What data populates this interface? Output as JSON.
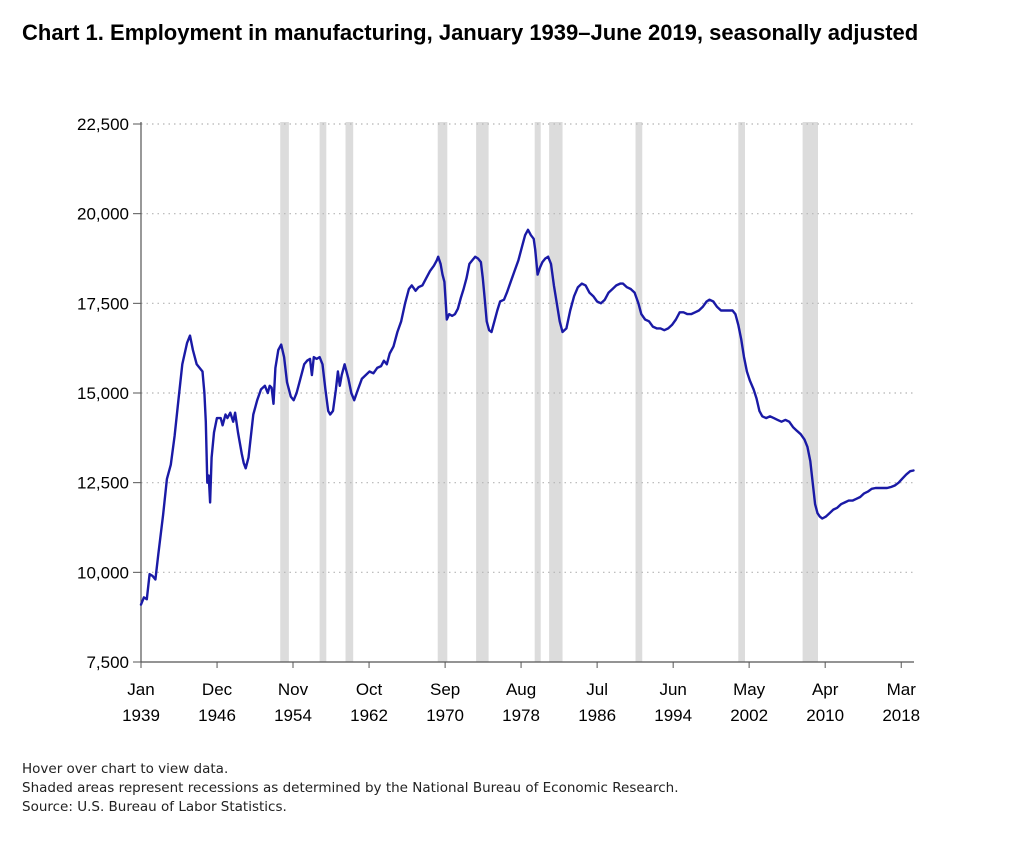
{
  "title": "Chart 1. Employment in manufacturing, January 1939–June 2019, seasonally adjusted",
  "notes": {
    "hover": "Hover over chart to view data.",
    "shading": "Shaded areas represent recessions as determined by the National Bureau of Economic Research.",
    "source": "Source: U.S. Bureau of Labor Statistics."
  },
  "colors": {
    "line": "#1a1aa6",
    "recession": "#dcdcdc",
    "grid": "#b5b5b5",
    "axis": "#555555"
  },
  "chart_data": {
    "type": "line",
    "title": "Chart 1. Employment in manufacturing, January 1939–June 2019, seasonally adjusted",
    "xlabel": "",
    "ylabel": "",
    "xlim": [
      1939.0,
      2019.5
    ],
    "ylim": [
      7500,
      22500
    ],
    "grid": "horizontal dotted",
    "y_ticks": [
      {
        "value": 7500,
        "label": "7,500"
      },
      {
        "value": 10000,
        "label": "10,000"
      },
      {
        "value": 12500,
        "label": "12,500"
      },
      {
        "value": 15000,
        "label": "15,000"
      },
      {
        "value": 17500,
        "label": "17,500"
      },
      {
        "value": 20000,
        "label": "20,000"
      },
      {
        "value": 22500,
        "label": "22,500"
      }
    ],
    "x_ticks": [
      {
        "value": 1939.0,
        "month": "Jan",
        "year": "1939"
      },
      {
        "value": 1946.92,
        "month": "Dec",
        "year": "1946"
      },
      {
        "value": 1954.83,
        "month": "Nov",
        "year": "1954"
      },
      {
        "value": 1962.75,
        "month": "Oct",
        "year": "1962"
      },
      {
        "value": 1970.67,
        "month": "Sep",
        "year": "1970"
      },
      {
        "value": 1978.58,
        "month": "Aug",
        "year": "1978"
      },
      {
        "value": 1986.5,
        "month": "Jul",
        "year": "1986"
      },
      {
        "value": 1994.42,
        "month": "Jun",
        "year": "1994"
      },
      {
        "value": 2002.33,
        "month": "May",
        "year": "2002"
      },
      {
        "value": 2010.25,
        "month": "Apr",
        "year": "2010"
      },
      {
        "value": 2018.17,
        "month": "Mar",
        "year": "2018"
      }
    ],
    "recessions": [
      [
        1953.5,
        1954.4
      ],
      [
        1957.6,
        1958.3
      ],
      [
        1960.3,
        1961.1
      ],
      [
        1969.9,
        1970.9
      ],
      [
        1973.9,
        1975.2
      ],
      [
        1980.0,
        1980.5
      ],
      [
        1981.5,
        1982.9
      ],
      [
        1990.5,
        1991.2
      ],
      [
        2001.2,
        2001.9
      ],
      [
        2007.9,
        2009.5
      ]
    ],
    "series": [
      {
        "values": [
          [
            1939.0,
            9100
          ],
          [
            1939.3,
            9300
          ],
          [
            1939.6,
            9250
          ],
          [
            1939.9,
            9950
          ],
          [
            1940.2,
            9900
          ],
          [
            1940.5,
            9800
          ],
          [
            1940.8,
            10500
          ],
          [
            1941.3,
            11600
          ],
          [
            1941.7,
            12600
          ],
          [
            1942.1,
            13000
          ],
          [
            1942.5,
            13800
          ],
          [
            1942.9,
            14800
          ],
          [
            1943.3,
            15800
          ],
          [
            1943.8,
            16400
          ],
          [
            1944.1,
            16600
          ],
          [
            1944.4,
            16200
          ],
          [
            1944.8,
            15800
          ],
          [
            1945.1,
            15700
          ],
          [
            1945.4,
            15600
          ],
          [
            1945.6,
            15000
          ],
          [
            1945.75,
            14200
          ],
          [
            1945.9,
            12500
          ],
          [
            1946.05,
            12700
          ],
          [
            1946.2,
            11950
          ],
          [
            1946.35,
            13200
          ],
          [
            1946.6,
            13900
          ],
          [
            1946.9,
            14300
          ],
          [
            1947.3,
            14300
          ],
          [
            1947.5,
            14100
          ],
          [
            1947.8,
            14400
          ],
          [
            1948.0,
            14300
          ],
          [
            1948.3,
            14450
          ],
          [
            1948.6,
            14200
          ],
          [
            1948.8,
            14450
          ],
          [
            1949.1,
            13900
          ],
          [
            1949.5,
            13300
          ],
          [
            1949.7,
            13050
          ],
          [
            1949.9,
            12900
          ],
          [
            1950.2,
            13200
          ],
          [
            1950.7,
            14400
          ],
          [
            1951.1,
            14800
          ],
          [
            1951.5,
            15100
          ],
          [
            1951.9,
            15200
          ],
          [
            1952.2,
            15000
          ],
          [
            1952.4,
            15200
          ],
          [
            1952.6,
            15150
          ],
          [
            1952.8,
            14700
          ],
          [
            1953.0,
            15700
          ],
          [
            1953.3,
            16200
          ],
          [
            1953.6,
            16350
          ],
          [
            1953.9,
            16000
          ],
          [
            1954.2,
            15300
          ],
          [
            1954.6,
            14900
          ],
          [
            1954.9,
            14800
          ],
          [
            1955.2,
            15000
          ],
          [
            1955.6,
            15400
          ],
          [
            1956.0,
            15800
          ],
          [
            1956.3,
            15900
          ],
          [
            1956.6,
            15950
          ],
          [
            1956.8,
            15500
          ],
          [
            1957.0,
            16000
          ],
          [
            1957.3,
            15950
          ],
          [
            1957.6,
            16000
          ],
          [
            1957.9,
            15800
          ],
          [
            1958.2,
            15100
          ],
          [
            1958.5,
            14500
          ],
          [
            1958.7,
            14400
          ],
          [
            1959.0,
            14500
          ],
          [
            1959.3,
            15100
          ],
          [
            1959.5,
            15600
          ],
          [
            1959.7,
            15200
          ],
          [
            1959.9,
            15500
          ],
          [
            1960.2,
            15800
          ],
          [
            1960.6,
            15400
          ],
          [
            1960.9,
            15000
          ],
          [
            1961.2,
            14800
          ],
          [
            1961.6,
            15100
          ],
          [
            1962.0,
            15400
          ],
          [
            1962.4,
            15500
          ],
          [
            1962.8,
            15600
          ],
          [
            1963.2,
            15550
          ],
          [
            1963.6,
            15700
          ],
          [
            1964.0,
            15750
          ],
          [
            1964.3,
            15900
          ],
          [
            1964.6,
            15800
          ],
          [
            1964.9,
            16100
          ],
          [
            1965.3,
            16300
          ],
          [
            1965.7,
            16700
          ],
          [
            1966.1,
            17000
          ],
          [
            1966.5,
            17500
          ],
          [
            1966.9,
            17900
          ],
          [
            1967.2,
            18000
          ],
          [
            1967.6,
            17850
          ],
          [
            1967.9,
            17950
          ],
          [
            1968.3,
            18000
          ],
          [
            1968.7,
            18200
          ],
          [
            1969.1,
            18400
          ],
          [
            1969.5,
            18550
          ],
          [
            1969.8,
            18700
          ],
          [
            1969.95,
            18800
          ],
          [
            1970.2,
            18600
          ],
          [
            1970.4,
            18300
          ],
          [
            1970.6,
            18100
          ],
          [
            1970.75,
            17450
          ],
          [
            1970.85,
            17050
          ],
          [
            1971.1,
            17200
          ],
          [
            1971.4,
            17150
          ],
          [
            1971.7,
            17200
          ],
          [
            1972.0,
            17350
          ],
          [
            1972.3,
            17650
          ],
          [
            1972.6,
            17900
          ],
          [
            1972.9,
            18200
          ],
          [
            1973.2,
            18600
          ],
          [
            1973.5,
            18700
          ],
          [
            1973.8,
            18800
          ],
          [
            1974.1,
            18750
          ],
          [
            1974.4,
            18650
          ],
          [
            1974.6,
            18200
          ],
          [
            1974.8,
            17600
          ],
          [
            1975.0,
            17000
          ],
          [
            1975.25,
            16750
          ],
          [
            1975.5,
            16700
          ],
          [
            1975.8,
            17000
          ],
          [
            1976.1,
            17300
          ],
          [
            1976.4,
            17550
          ],
          [
            1976.8,
            17600
          ],
          [
            1977.1,
            17800
          ],
          [
            1977.5,
            18100
          ],
          [
            1977.9,
            18400
          ],
          [
            1978.3,
            18700
          ],
          [
            1978.7,
            19100
          ],
          [
            1979.0,
            19400
          ],
          [
            1979.3,
            19550
          ],
          [
            1979.6,
            19400
          ],
          [
            1979.9,
            19300
          ],
          [
            1980.05,
            19000
          ],
          [
            1980.3,
            18300
          ],
          [
            1980.55,
            18500
          ],
          [
            1980.8,
            18650
          ],
          [
            1981.1,
            18750
          ],
          [
            1981.4,
            18800
          ],
          [
            1981.7,
            18600
          ],
          [
            1982.0,
            18000
          ],
          [
            1982.3,
            17500
          ],
          [
            1982.6,
            17000
          ],
          [
            1982.9,
            16700
          ],
          [
            1983.3,
            16800
          ],
          [
            1983.7,
            17300
          ],
          [
            1984.1,
            17700
          ],
          [
            1984.5,
            17950
          ],
          [
            1984.9,
            18050
          ],
          [
            1985.3,
            18000
          ],
          [
            1985.7,
            17800
          ],
          [
            1986.1,
            17700
          ],
          [
            1986.5,
            17550
          ],
          [
            1986.9,
            17500
          ],
          [
            1987.3,
            17600
          ],
          [
            1987.7,
            17800
          ],
          [
            1988.1,
            17900
          ],
          [
            1988.5,
            18000
          ],
          [
            1988.9,
            18050
          ],
          [
            1989.2,
            18050
          ],
          [
            1989.6,
            17950
          ],
          [
            1990.0,
            17900
          ],
          [
            1990.4,
            17800
          ],
          [
            1990.8,
            17500
          ],
          [
            1991.1,
            17200
          ],
          [
            1991.5,
            17050
          ],
          [
            1991.9,
            17000
          ],
          [
            1992.3,
            16850
          ],
          [
            1992.7,
            16800
          ],
          [
            1993.1,
            16800
          ],
          [
            1993.5,
            16750
          ],
          [
            1993.9,
            16800
          ],
          [
            1994.3,
            16900
          ],
          [
            1994.7,
            17050
          ],
          [
            1995.1,
            17250
          ],
          [
            1995.5,
            17250
          ],
          [
            1995.9,
            17200
          ],
          [
            1996.3,
            17200
          ],
          [
            1996.7,
            17250
          ],
          [
            1997.1,
            17300
          ],
          [
            1997.5,
            17400
          ],
          [
            1997.9,
            17550
          ],
          [
            1998.2,
            17600
          ],
          [
            1998.6,
            17550
          ],
          [
            1999.0,
            17400
          ],
          [
            1999.4,
            17300
          ],
          [
            1999.8,
            17300
          ],
          [
            2000.2,
            17300
          ],
          [
            2000.6,
            17300
          ],
          [
            2000.9,
            17200
          ],
          [
            2001.2,
            16900
          ],
          [
            2001.5,
            16500
          ],
          [
            2001.8,
            16000
          ],
          [
            2002.1,
            15600
          ],
          [
            2002.4,
            15350
          ],
          [
            2002.8,
            15100
          ],
          [
            2003.1,
            14850
          ],
          [
            2003.4,
            14500
          ],
          [
            2003.7,
            14350
          ],
          [
            2004.1,
            14300
          ],
          [
            2004.5,
            14350
          ],
          [
            2004.9,
            14300
          ],
          [
            2005.3,
            14250
          ],
          [
            2005.7,
            14200
          ],
          [
            2006.1,
            14250
          ],
          [
            2006.5,
            14200
          ],
          [
            2006.9,
            14050
          ],
          [
            2007.3,
            13950
          ],
          [
            2007.7,
            13850
          ],
          [
            2008.1,
            13700
          ],
          [
            2008.4,
            13500
          ],
          [
            2008.7,
            13100
          ],
          [
            2008.95,
            12500
          ],
          [
            2009.2,
            11900
          ],
          [
            2009.45,
            11650
          ],
          [
            2009.7,
            11550
          ],
          [
            2009.95,
            11500
          ],
          [
            2010.3,
            11550
          ],
          [
            2010.7,
            11650
          ],
          [
            2011.1,
            11750
          ],
          [
            2011.5,
            11800
          ],
          [
            2011.9,
            11900
          ],
          [
            2012.3,
            11950
          ],
          [
            2012.7,
            12000
          ],
          [
            2013.1,
            12000
          ],
          [
            2013.5,
            12050
          ],
          [
            2013.9,
            12100
          ],
          [
            2014.3,
            12200
          ],
          [
            2014.7,
            12250
          ],
          [
            2015.1,
            12330
          ],
          [
            2015.5,
            12350
          ],
          [
            2015.9,
            12350
          ],
          [
            2016.3,
            12350
          ],
          [
            2016.7,
            12350
          ],
          [
            2017.1,
            12380
          ],
          [
            2017.5,
            12420
          ],
          [
            2017.9,
            12500
          ],
          [
            2018.3,
            12620
          ],
          [
            2018.7,
            12730
          ],
          [
            2019.1,
            12820
          ],
          [
            2019.45,
            12840
          ]
        ]
      }
    ]
  }
}
